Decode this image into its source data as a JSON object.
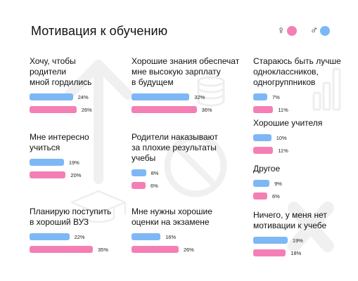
{
  "header": {
    "title": "Мотивация к обучению"
  },
  "legend": [
    {
      "symbol": "♀",
      "color": "#f47fb5"
    },
    {
      "symbol": "♂",
      "color": "#7eb7f5"
    }
  ],
  "colors": {
    "male": "#7eb7f5",
    "female": "#f47fb5",
    "decor": "#f0f0f0"
  },
  "chart_data": {
    "type": "bar",
    "title": "Мотивация к обучению",
    "series_names": [],
    "categories": [
      {
        "label": "Хочу, чтобы\nродители\nмной гордились",
        "male": 24,
        "female": 26
      },
      {
        "label": "Хорошие знания обеспечат\nмне высокую зарплату\nв будущем",
        "male": 32,
        "female": 36
      },
      {
        "label": "Стараюсь быть лучше\nодноклассников,\nодногруппников",
        "male": 7,
        "female": 11
      },
      {
        "label": "Хорошие учителя",
        "male": 10,
        "female": 11
      },
      {
        "label": "Мне интересно\nучиться",
        "male": 19,
        "female": 20
      },
      {
        "label": "Родители наказывают\nза плохие результаты\nучебы",
        "male": 8,
        "female": 6
      },
      {
        "label": "Другое",
        "male": 9,
        "female": 6
      },
      {
        "label": "Планирую поступить\nв хороший ВУЗ",
        "male": 22,
        "female": 35
      },
      {
        "label": "Мне нужны хорошие\nоценки на экзамене",
        "male": 16,
        "female": 26
      },
      {
        "label": "Ничего, у меня нет\nмотивации к учебе",
        "male": 19,
        "female": 18
      }
    ],
    "unit": "%"
  }
}
